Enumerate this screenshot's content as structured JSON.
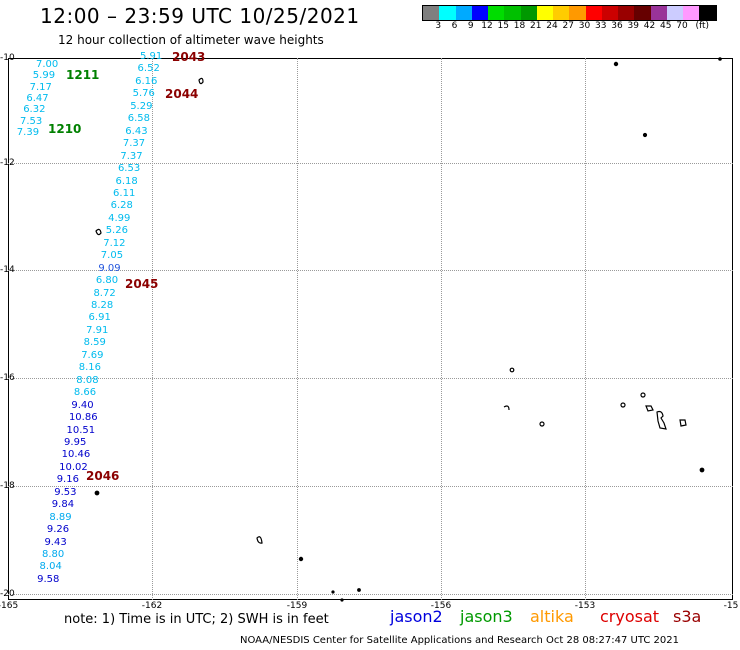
{
  "header": {
    "title": "12:00 – 23:59 UTC 10/25/2021",
    "subtitle": "12 hour collection of altimeter wave heights"
  },
  "colorbar": {
    "colors": [
      "#7f7f7f",
      "#00ffff",
      "#00aaff",
      "#0000ff",
      "#00dd00",
      "#00c000",
      "#009900",
      "#ffff00",
      "#ffcc00",
      "#ff9900",
      "#ff0000",
      "#cc0000",
      "#990000",
      "#660000",
      "#993399",
      "#ccccff",
      "#ff99ff",
      "#000000"
    ],
    "labels": [
      "3",
      "6",
      "9",
      "12",
      "15",
      "18",
      "21",
      "24",
      "27",
      "30",
      "33",
      "36",
      "39",
      "42",
      "45",
      "70",
      "(ft)"
    ]
  },
  "axes": {
    "lat_labels": [
      "-10",
      "-12",
      "-14",
      "-16",
      "-18",
      "-20"
    ],
    "lon_labels": [
      "-165",
      "-162",
      "-159",
      "-156",
      "-153",
      "-15"
    ]
  },
  "orbits": [
    {
      "id": "2043",
      "label": "2043",
      "color": "#8b0000"
    },
    {
      "id": "2044",
      "label": "2044",
      "color": "#8b0000"
    },
    {
      "id": "2045",
      "label": "2045",
      "color": "#8b0000"
    },
    {
      "id": "2046",
      "label": "2046",
      "color": "#8b0000"
    },
    {
      "id": "1211",
      "label": "1211",
      "color": "#008000"
    },
    {
      "id": "1210",
      "label": "1210",
      "color": "#008000"
    }
  ],
  "tracks": {
    "track_1211": [
      {
        "v": "7.00",
        "c": "#00bbee"
      },
      {
        "v": "5.99",
        "c": "#00bbee"
      },
      {
        "v": "7.17",
        "c": "#00bbee"
      },
      {
        "v": "6.47",
        "c": "#00bbee"
      },
      {
        "v": "6.32",
        "c": "#00bbee"
      },
      {
        "v": "7.53",
        "c": "#00bbee"
      },
      {
        "v": "7.39",
        "c": "#00bbee"
      }
    ],
    "track_2043": [
      {
        "v": "5.91",
        "c": "#00bbee"
      },
      {
        "v": "6.52",
        "c": "#00bbee"
      },
      {
        "v": "6.16",
        "c": "#00bbee"
      },
      {
        "v": "5.76",
        "c": "#00bbee"
      },
      {
        "v": "5.29",
        "c": "#00bbee"
      },
      {
        "v": "6.58",
        "c": "#00bbee"
      },
      {
        "v": "6.43",
        "c": "#00bbee"
      },
      {
        "v": "7.37",
        "c": "#00bbee"
      },
      {
        "v": "7.37",
        "c": "#00bbee"
      },
      {
        "v": "6.53",
        "c": "#00bbee"
      },
      {
        "v": "6.18",
        "c": "#00bbee"
      },
      {
        "v": "6.11",
        "c": "#00bbee"
      },
      {
        "v": "6.28",
        "c": "#00bbee"
      },
      {
        "v": "4.99",
        "c": "#00bbee"
      },
      {
        "v": "5.26",
        "c": "#00bbee"
      },
      {
        "v": "7.12",
        "c": "#00bbee"
      },
      {
        "v": "7.05",
        "c": "#00bbee"
      },
      {
        "v": "9.09",
        "c": "#2255dd"
      },
      {
        "v": "6.80",
        "c": "#00bbee"
      },
      {
        "v": "8.72",
        "c": "#00bbee"
      },
      {
        "v": "8.28",
        "c": "#00bbee"
      },
      {
        "v": "6.91",
        "c": "#00bbee"
      },
      {
        "v": "7.91",
        "c": "#00bbee"
      },
      {
        "v": "8.59",
        "c": "#00bbee"
      },
      {
        "v": "7.69",
        "c": "#00bbee"
      },
      {
        "v": "8.16",
        "c": "#00bbee"
      },
      {
        "v": "8.08",
        "c": "#00bbee"
      },
      {
        "v": "8.66",
        "c": "#00bbee"
      },
      {
        "v": "9.40",
        "c": "#0000cc"
      },
      {
        "v": "10.86",
        "c": "#0000cc"
      },
      {
        "v": "10.51",
        "c": "#0000cc"
      },
      {
        "v": "9.95",
        "c": "#0000cc"
      },
      {
        "v": "10.46",
        "c": "#0000cc"
      },
      {
        "v": "10.02",
        "c": "#0000cc"
      },
      {
        "v": "9.16",
        "c": "#0000cc"
      },
      {
        "v": "9.53",
        "c": "#0000cc"
      },
      {
        "v": "9.84",
        "c": "#0000cc"
      },
      {
        "v": "8.89",
        "c": "#00aaee"
      },
      {
        "v": "9.26",
        "c": "#0000cc"
      },
      {
        "v": "9.43",
        "c": "#0000cc"
      },
      {
        "v": "8.80",
        "c": "#00aaee"
      },
      {
        "v": "8.04",
        "c": "#00aaee"
      },
      {
        "v": "9.58",
        "c": "#0000cc"
      }
    ]
  },
  "legend": [
    {
      "label": "jason2",
      "color": "#0000dd"
    },
    {
      "label": "jason3",
      "color": "#009900"
    },
    {
      "label": "altika",
      "color": "#ff9900"
    },
    {
      "label": "cryosat",
      "color": "#dd0000"
    },
    {
      "label": "s3a",
      "color": "#990000"
    }
  ],
  "note": "note:  1) Time is in UTC;  2) SWH is in feet",
  "footer": "NOAA/NESDIS Center for Satellite Applications and Research     Oct 28 08:27:47 UTC 2021"
}
